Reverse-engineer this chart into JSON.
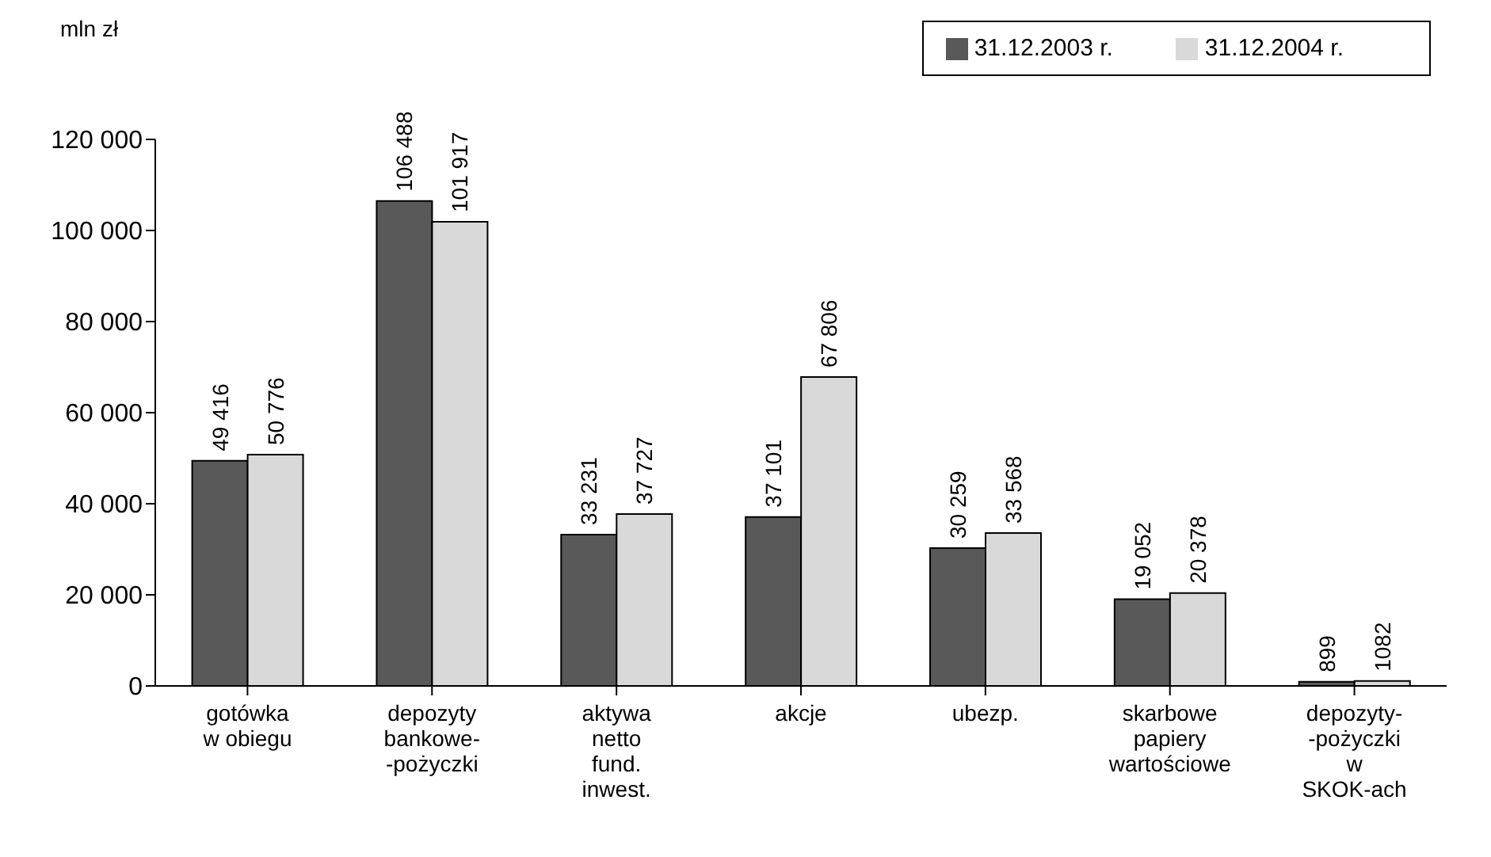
{
  "chart_data": {
    "type": "bar",
    "ylabel": "mln zł",
    "categories": [
      "gotówka\nw obiegu",
      "depozyty\nbankowe-\n-pożyczki",
      "aktywa\nnetto\nfund.\ninwest.",
      "akcje",
      "ubezp.",
      "skarbowe\npapiery\nwartościowe",
      "depozyty-\n-pożyczki\nw\nSKOK-ach"
    ],
    "series": [
      {
        "name": "31.12.2003 r.",
        "color": "#595959",
        "values": [
          49416,
          106488,
          33231,
          37101,
          30259,
          19052,
          899
        ],
        "value_labels": [
          "49 416",
          "106 488",
          "33 231",
          "37 101",
          "30 259",
          "19 052",
          "899"
        ]
      },
      {
        "name": "31.12.2004 r.",
        "color": "#d9d9d9",
        "values": [
          50776,
          101917,
          37727,
          67806,
          33568,
          20378,
          1082
        ],
        "value_labels": [
          "50 776",
          "101 917",
          "37 727",
          "67 806",
          "33 568",
          "20 378",
          "1082"
        ]
      }
    ],
    "ylim": [
      0,
      120000
    ],
    "yticks": [
      {
        "value": 0,
        "label": "0"
      },
      {
        "value": 20000,
        "label": "20 000"
      },
      {
        "value": 40000,
        "label": "40 000"
      },
      {
        "value": 60000,
        "label": "60 000"
      },
      {
        "value": 80000,
        "label": "80 000"
      },
      {
        "value": 100000,
        "label": "100 000"
      },
      {
        "value": 120000,
        "label": "120 000"
      }
    ],
    "grid": false,
    "legend": "top right"
  }
}
